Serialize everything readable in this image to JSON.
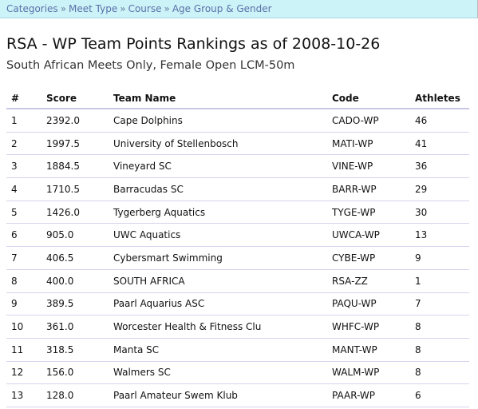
{
  "breadcrumb": [
    "Categories",
    "Meet Type",
    "Course",
    "Age Group & Gender"
  ],
  "breadcrumb_sep": "»",
  "title": "RSA - WP Team Points Rankings as of 2008-10-26",
  "subtitle": "South African Meets Only, Female Open LCM-50m",
  "table": {
    "headers": [
      "#",
      "Score",
      "Team Name",
      "Code",
      "Athletes"
    ],
    "rows": [
      [
        "1",
        "2392.0",
        "Cape Dolphins",
        "CADO-WP",
        "46"
      ],
      [
        "2",
        "1997.5",
        "University of Stellenbosch",
        "MATI-WP",
        "41"
      ],
      [
        "3",
        "1884.5",
        "Vineyard SC",
        "VINE-WP",
        "36"
      ],
      [
        "4",
        "1710.5",
        "Barracudas SC",
        "BARR-WP",
        "29"
      ],
      [
        "5",
        "1426.0",
        "Tygerberg Aquatics",
        "TYGE-WP",
        "30"
      ],
      [
        "6",
        "905.0",
        "UWC Aquatics",
        "UWCA-WP",
        "13"
      ],
      [
        "7",
        "406.5",
        "Cybersmart Swimming",
        "CYBE-WP",
        "9"
      ],
      [
        "8",
        "400.0",
        "SOUTH AFRICA",
        "RSA-ZZ",
        "1"
      ],
      [
        "9",
        "389.5",
        "Paarl Aquarius ASC",
        "PAQU-WP",
        "7"
      ],
      [
        "10",
        "361.0",
        "Worcester Health & Fitness Clu",
        "WHFC-WP",
        "8"
      ],
      [
        "11",
        "318.5",
        "Manta SC",
        "MANT-WP",
        "8"
      ],
      [
        "12",
        "156.0",
        "Walmers SC",
        "WALM-WP",
        "8"
      ],
      [
        "13",
        "128.0",
        "Paarl Amateur Swem Klub",
        "PAAR-WP",
        "6"
      ]
    ]
  }
}
